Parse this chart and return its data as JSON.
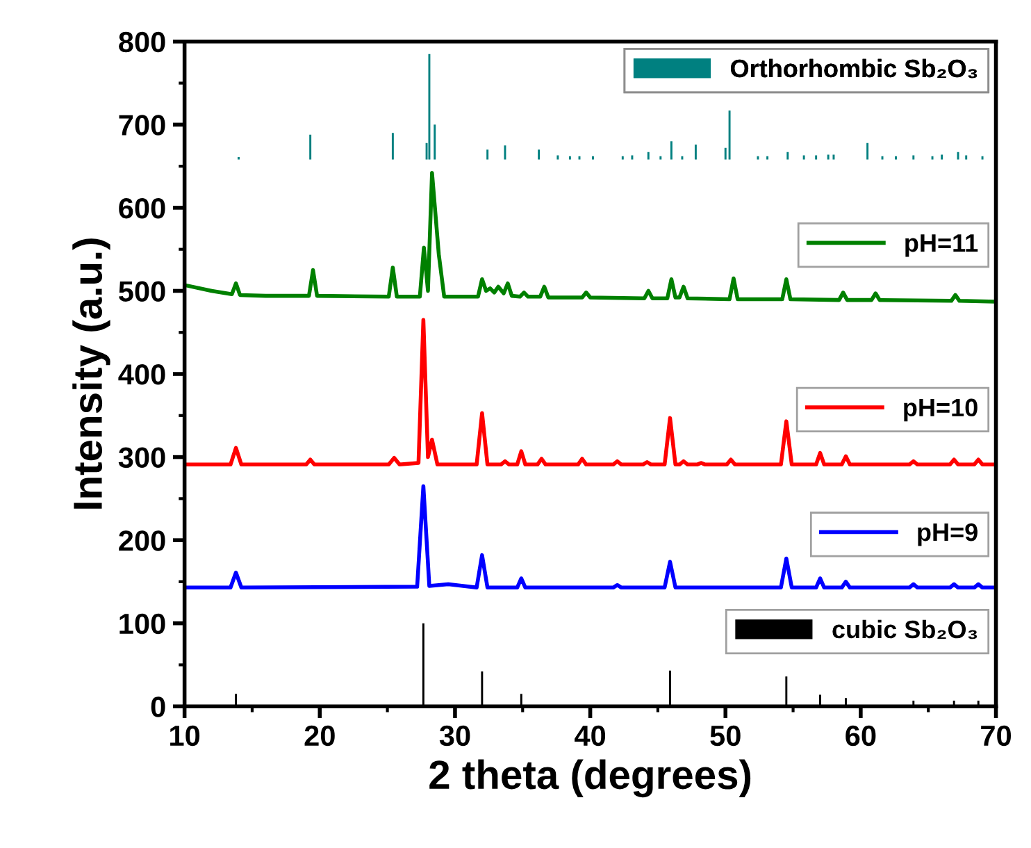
{
  "chart_data": {
    "type": "line",
    "xlabel": "2 theta (degrees)",
    "ylabel": "Intensity (a.u.)",
    "xlim": [
      10,
      70
    ],
    "xticks": [
      10,
      20,
      30,
      40,
      50,
      60,
      70
    ],
    "ylim": [
      0,
      800
    ],
    "yticks": [
      0,
      100,
      200,
      300,
      400,
      500,
      600,
      700,
      800
    ],
    "legend": "right",
    "series": [
      {
        "name": "cubic Sb₂O₃",
        "type": "bar",
        "color": "#000000",
        "x": [
          13.8,
          27.66,
          32.0,
          34.9,
          45.9,
          54.5,
          57.0,
          58.9,
          63.9,
          66.9,
          68.7
        ],
        "values": [
          15,
          100,
          42,
          15,
          43,
          36,
          14,
          10,
          7,
          7,
          7
        ]
      },
      {
        "name": "pH=9",
        "color": "#0000ff",
        "x": [
          10,
          13.4,
          13.8,
          14.2,
          27.2,
          27.66,
          28.1,
          29.5,
          31.6,
          32.0,
          32.4,
          34.6,
          34.9,
          35.2,
          41.7,
          42.0,
          42.3,
          45.5,
          45.9,
          46.3,
          54.1,
          54.5,
          54.9,
          56.7,
          57.0,
          57.3,
          58.6,
          58.9,
          59.2,
          63.6,
          63.9,
          64.2,
          66.6,
          66.9,
          67.2,
          68.4,
          68.7,
          69.0,
          70
        ],
        "values": [
          143,
          143,
          161,
          143,
          144,
          265,
          145,
          147,
          143,
          182,
          143,
          143,
          154,
          143,
          143,
          146,
          143,
          143,
          174,
          143,
          143,
          178,
          143,
          143,
          154,
          143,
          143,
          150,
          143,
          143,
          147,
          143,
          143,
          147,
          143,
          143,
          147,
          143,
          143
        ]
      },
      {
        "name": "pH=10",
        "color": "#ff0000",
        "x": [
          10,
          13.4,
          13.8,
          14.2,
          19.0,
          19.3,
          19.6,
          25.1,
          25.5,
          25.9,
          27.3,
          27.66,
          28.0,
          28.3,
          28.7,
          31.6,
          32.0,
          32.4,
          33.4,
          33.7,
          34.0,
          34.6,
          34.9,
          35.2,
          36.1,
          36.4,
          36.7,
          39.1,
          39.4,
          39.7,
          41.7,
          42.0,
          42.3,
          43.9,
          44.2,
          44.5,
          45.5,
          45.9,
          46.3,
          46.6,
          46.9,
          47.2,
          47.9,
          48.2,
          48.5,
          50.1,
          50.4,
          50.7,
          54.1,
          54.5,
          54.9,
          56.7,
          57.0,
          57.3,
          58.6,
          58.9,
          59.2,
          63.6,
          63.9,
          64.2,
          66.6,
          66.9,
          67.2,
          68.4,
          68.7,
          69.0,
          70
        ],
        "values": [
          291,
          291,
          311,
          291,
          291,
          297,
          291,
          291,
          299,
          291,
          293,
          465,
          300,
          321,
          291,
          291,
          353,
          291,
          291,
          295,
          291,
          291,
          307,
          291,
          291,
          298,
          291,
          291,
          298,
          291,
          291,
          295,
          291,
          291,
          294,
          291,
          291,
          347,
          291,
          291,
          295,
          291,
          291,
          293,
          291,
          291,
          297,
          291,
          291,
          343,
          291,
          291,
          305,
          291,
          291,
          301,
          291,
          291,
          295,
          291,
          291,
          297,
          291,
          291,
          297,
          291,
          291
        ]
      },
      {
        "name": "pH=11",
        "color": "#008000",
        "x": [
          10,
          12,
          13.5,
          13.8,
          14.1,
          16,
          19.2,
          19.5,
          19.8,
          25.1,
          25.4,
          25.7,
          27.4,
          27.7,
          28.0,
          28.3,
          28.8,
          29.2,
          31.7,
          32.0,
          32.3,
          32.6,
          32.9,
          33.2,
          33.6,
          33.9,
          34.2,
          34.8,
          35.1,
          35.4,
          36.3,
          36.6,
          36.9,
          39.4,
          39.7,
          40.0,
          44.0,
          44.3,
          44.6,
          45.7,
          46.0,
          46.3,
          46.6,
          46.9,
          47.2,
          50.3,
          50.6,
          50.9,
          54.2,
          54.5,
          54.8,
          58.4,
          58.7,
          59.0,
          60.8,
          61.1,
          61.4,
          66.7,
          67.0,
          67.3,
          70
        ],
        "values": [
          507,
          500,
          496,
          509,
          495,
          494,
          494,
          525,
          494,
          493,
          528,
          493,
          493,
          552,
          500,
          642,
          544,
          493,
          493,
          514,
          500,
          503,
          498,
          505,
          497,
          509,
          494,
          493,
          498,
          493,
          493,
          505,
          492,
          492,
          498,
          492,
          491,
          500,
          491,
          491,
          514,
          492,
          492,
          505,
          491,
          490,
          515,
          490,
          490,
          514,
          490,
          489,
          498,
          489,
          489,
          497,
          489,
          488,
          495,
          488,
          487
        ]
      },
      {
        "name": "Orthorhombic Sb₂O₃",
        "type": "bar",
        "color": "#008080",
        "base": [
          658,
          658,
          658,
          658,
          658,
          658,
          658,
          658,
          658,
          658,
          658,
          658,
          658,
          658,
          658,
          658,
          658,
          658,
          658,
          658,
          658,
          658,
          658,
          658,
          658,
          658,
          658,
          658,
          658,
          658,
          658,
          658,
          658,
          658,
          658,
          658,
          658,
          658
        ],
        "x": [
          14.0,
          19.3,
          25.4,
          27.9,
          28.1,
          28.5,
          32.4,
          33.7,
          36.2,
          37.6,
          38.5,
          39.2,
          40.2,
          42.4,
          43.1,
          44.3,
          45.2,
          46.0,
          46.8,
          47.8,
          50.0,
          50.3,
          52.4,
          53.1,
          54.6,
          55.8,
          56.7,
          57.6,
          58.0,
          60.5,
          61.6,
          62.6,
          63.9,
          65.3,
          66.0,
          67.2,
          67.8,
          69.0
        ],
        "values": [
          3,
          30,
          32,
          20,
          127,
          42,
          12,
          17,
          12,
          5,
          4,
          4,
          4,
          4,
          5,
          9,
          4,
          22,
          4,
          18,
          14,
          59,
          4,
          4,
          9,
          5,
          5,
          6,
          6,
          20,
          4,
          4,
          5,
          4,
          6,
          9,
          5,
          4
        ]
      }
    ]
  }
}
